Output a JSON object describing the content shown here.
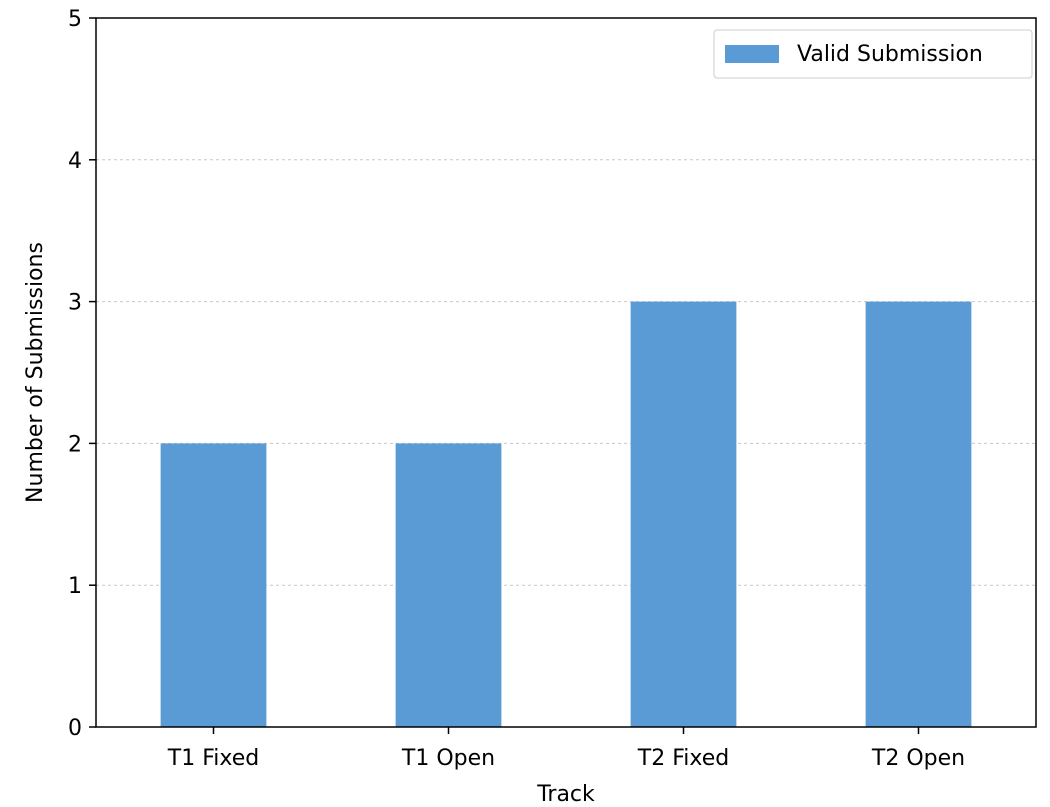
{
  "chart_data": {
    "type": "bar",
    "title": "",
    "xlabel": "Track",
    "ylabel": "Number of Submissions",
    "categories": [
      "T1 Fixed",
      "T1 Open",
      "T2 Fixed",
      "T2 Open"
    ],
    "series": [
      {
        "name": "Valid Submission",
        "values": [
          2,
          2,
          3,
          3
        ],
        "color": "#5b9bd5"
      }
    ],
    "ylim": [
      0,
      5
    ],
    "yticks": [
      "0",
      "1",
      "2",
      "3",
      "4",
      "5"
    ],
    "grid": {
      "y": true,
      "x": false,
      "style": "dashed",
      "color": "#c8c8c8"
    },
    "legend_position": "top-right"
  }
}
